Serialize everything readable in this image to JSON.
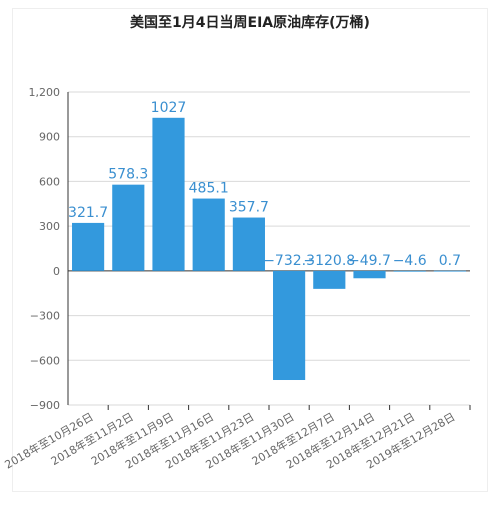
{
  "chart_data": {
    "type": "bar",
    "title": "美国至1月4日当周EIA原油库存(万桶)",
    "categories": [
      "2018年至10月26日",
      "2018年至11月2日",
      "2018年至11月9日",
      "2018年至11月16日",
      "2018年至11月23日",
      "2018年至11月30日",
      "2018年至12月7日",
      "2018年至12月14日",
      "2018年至12月21日",
      "2019年至12月28日"
    ],
    "values": [
      321.7,
      578.3,
      1027,
      485.1,
      357.7,
      -732.3,
      -120.8,
      -49.7,
      -4.6,
      0.7
    ],
    "value_labels": [
      "321.7",
      "578.3",
      "1027",
      "485.1",
      "357.7",
      "−732.3",
      "−120.8",
      "−49.7",
      "−4.6",
      "0.7"
    ],
    "ylim": [
      -900,
      1200
    ],
    "yticks": [
      1200,
      900,
      600,
      300,
      0,
      -300,
      -600,
      -900
    ],
    "ytick_labels": [
      "1,200",
      "900",
      "600",
      "300",
      "0",
      "−300",
      "−600",
      "−900"
    ],
    "xlabel": "",
    "ylabel": "",
    "grid": true,
    "bar_color": "#3399dd",
    "label_color": "#3a8fd0"
  }
}
